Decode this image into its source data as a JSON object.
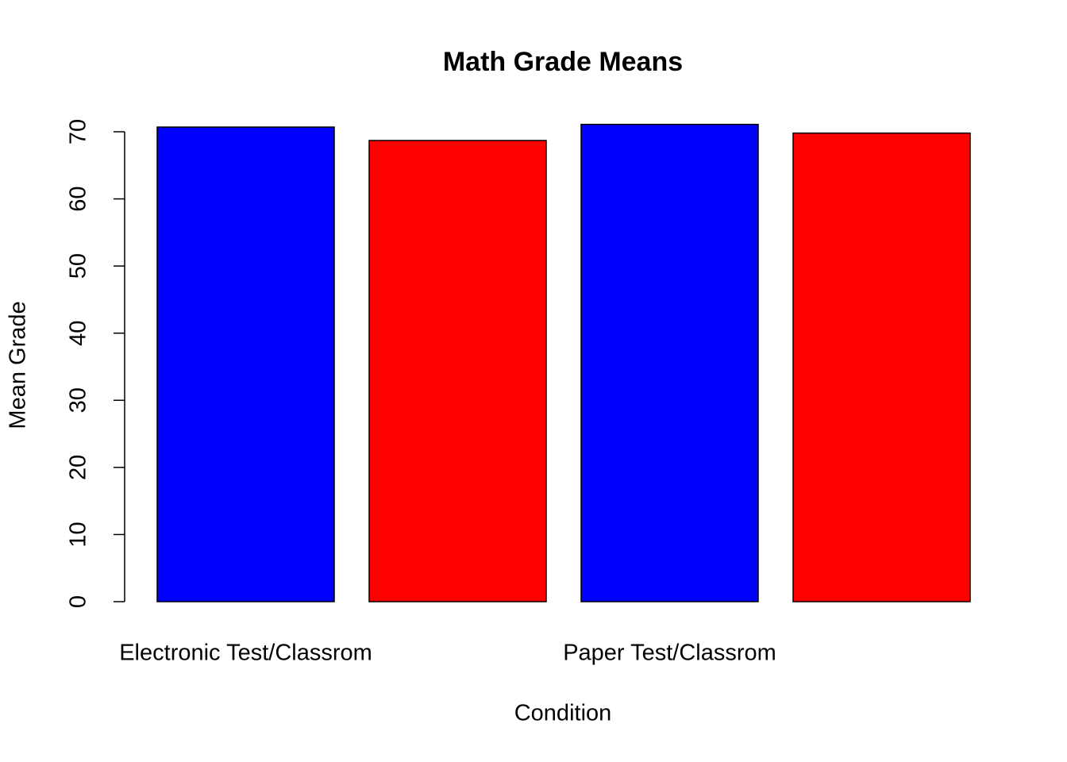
{
  "chart_data": {
    "type": "bar",
    "title": "Math Grade Means",
    "x_label": "Condition",
    "y_label": "Mean Grade",
    "categories": [
      "Electronic Test/Classrom",
      null,
      "Paper Test/Classrom",
      null
    ],
    "values": [
      70.7,
      68.7,
      71.1,
      69.8
    ],
    "colors": [
      "#0000ff",
      "#ff0000",
      "#0000ff",
      "#ff0000"
    ],
    "ylim": [
      0,
      71.1
    ],
    "yticks": [
      0,
      10,
      20,
      30,
      40,
      50,
      60,
      70
    ],
    "grid": false
  }
}
